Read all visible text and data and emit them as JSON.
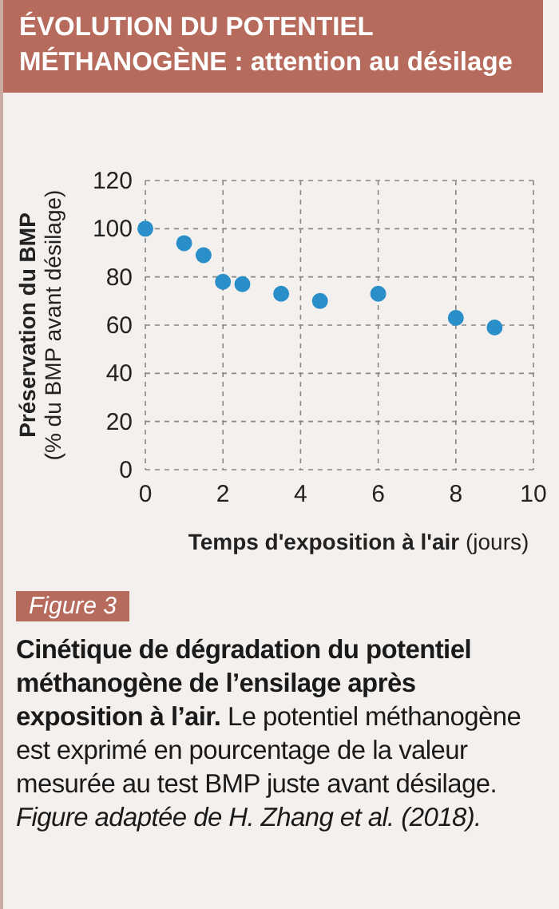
{
  "chart_data": {
    "type": "scatter",
    "title": "ÉVOLUTION DU POTENTIEL MÉTHANOGÈNE : attention au désilage",
    "xlabel": "Temps d'exposition à l'air (jours)",
    "ylabel": "Préservation du BMP (% du BMP avant désilage)",
    "x": [
      0,
      1,
      1.5,
      2,
      2.5,
      3.5,
      4.5,
      6,
      8,
      9
    ],
    "series": [
      {
        "color": "#2a8fc9",
        "values": [
          100,
          94,
          89,
          78,
          77,
          73,
          70,
          73,
          63,
          59
        ]
      }
    ],
    "xlim": [
      0,
      10
    ],
    "xticks": [
      0,
      2,
      4,
      6,
      8,
      10
    ],
    "ylim": [
      0,
      120
    ],
    "yticks": [
      0,
      20,
      40,
      60,
      80,
      100,
      120
    ],
    "grid": true,
    "marker": "circle",
    "annotations": [
      "Figure 3",
      "Cinétique de dégradation du potentiel méthanogène de l’ensilage après exposition à l’air.",
      "Le potentiel méthanogène est exprimé en pourcentage de la valeur mesurée au test BMP juste avant désilage.",
      "Figure adaptée de H. Zhang et al. (2018)."
    ]
  }
}
